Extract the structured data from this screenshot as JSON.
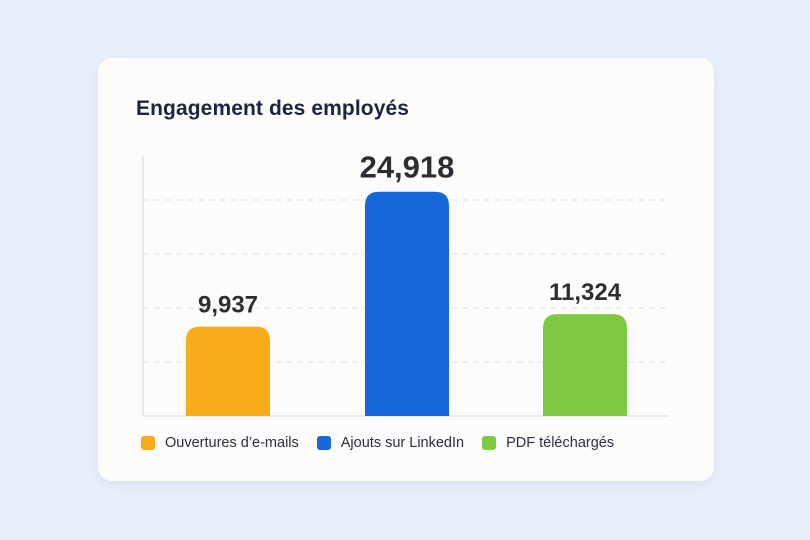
{
  "card": {
    "title": "Engagement des employés"
  },
  "chart_data": {
    "type": "bar",
    "title": "Engagement des employés",
    "categories": [
      "Ouvertures d'e-mails",
      "Ajouts sur LinkedIn",
      "PDF téléchargés"
    ],
    "values": [
      9937,
      24918,
      11324
    ],
    "value_labels": [
      "9,937",
      "24,918",
      "11,324"
    ],
    "colors": [
      "#f9ac19",
      "#1767d9",
      "#7dc944"
    ],
    "ylim": [
      0,
      30000
    ],
    "grid": true,
    "legend_position": "bottom",
    "xlabel": "",
    "ylabel": ""
  },
  "legend": [
    {
      "label": "Ouvertures d’e-mails",
      "color": "#f9ac19"
    },
    {
      "label": "Ajouts sur LinkedIn",
      "color": "#1767d9"
    },
    {
      "label": "PDF téléchargés",
      "color": "#7dc944"
    }
  ]
}
